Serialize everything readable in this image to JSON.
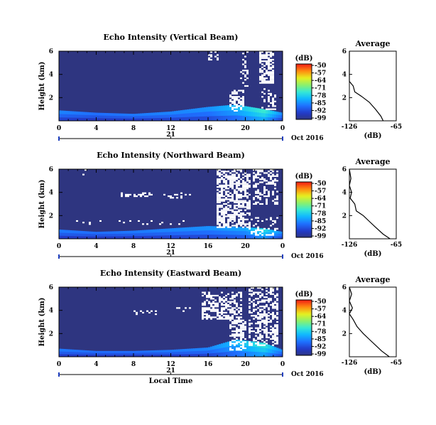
{
  "chart_data": [
    {
      "type": "heatmap",
      "title": "Echo Intensity (Vertical Beam)",
      "ylabel": "Height (km)",
      "yticks": [
        "6",
        "4",
        "2"
      ],
      "xticks": [
        "0",
        "4",
        "8",
        "12",
        "16",
        "20",
        "0"
      ],
      "date_tick": "21",
      "date_label": "Oct 2016",
      "xlim": [
        0,
        24
      ],
      "ylim": [
        0,
        6
      ],
      "colorbar": {
        "label": "(dB)",
        "ticks": [
          "-50",
          "-57",
          "-64",
          "-71",
          "-78",
          "-85",
          "-92",
          "-99"
        ],
        "range": [
          -99,
          -50
        ]
      },
      "background_db": -99,
      "speckle_seed": 11,
      "speckle": [
        {
          "x": [
            16.2,
            17.0
          ],
          "y": [
            5.2,
            5.9
          ],
          "p": 0.35
        },
        {
          "x": [
            18.5,
            19.8
          ],
          "y": [
            0.9,
            2.6
          ],
          "p": 0.55
        },
        {
          "x": [
            19.5,
            20.3
          ],
          "y": [
            3.0,
            6.0
          ],
          "p": 0.25
        },
        {
          "x": [
            21.5,
            23.0
          ],
          "y": [
            3.3,
            5.9
          ],
          "p": 0.75
        },
        {
          "x": [
            21.8,
            23.2
          ],
          "y": [
            1.0,
            2.8
          ],
          "p": 0.35
        }
      ],
      "low_layer": [
        {
          "x": 0,
          "top": 0.9,
          "db": -89
        },
        {
          "x": 4,
          "top": 0.7,
          "db": -91
        },
        {
          "x": 8,
          "top": 0.6,
          "db": -90
        },
        {
          "x": 12,
          "top": 0.8,
          "db": -89
        },
        {
          "x": 16,
          "top": 1.2,
          "db": -88
        },
        {
          "x": 19,
          "top": 1.4,
          "db": -84
        },
        {
          "x": 22,
          "top": 1.0,
          "db": -78
        },
        {
          "x": 24,
          "top": 0.7,
          "db": -89
        }
      ],
      "profile": {
        "title": "Average",
        "xlabel": "(dB)",
        "xticks": [
          "-126",
          "-65"
        ],
        "yticks": [
          "6",
          "4",
          "2"
        ],
        "xlim": [
          -126,
          -65
        ],
        "ylim": [
          0,
          6
        ],
        "points": [
          [
            -126,
            6.0
          ],
          [
            -126,
            3.4
          ],
          [
            -121,
            3.0
          ],
          [
            -119,
            2.5
          ],
          [
            -110,
            2.1
          ],
          [
            -100,
            1.6
          ],
          [
            -92,
            1.0
          ],
          [
            -85,
            0.4
          ],
          [
            -82,
            0.0
          ]
        ]
      }
    },
    {
      "type": "heatmap",
      "title": "Echo Intensity (Northward Beam)",
      "ylabel": "Height (km)",
      "yticks": [
        "6",
        "4",
        "2"
      ],
      "xticks": [
        "0",
        "4",
        "8",
        "12",
        "16",
        "20",
        "0"
      ],
      "date_tick": "21",
      "date_label": "Oct 2016",
      "xlim": [
        0,
        24
      ],
      "ylim": [
        0,
        6
      ],
      "colorbar": {
        "label": "(dB)",
        "ticks": [
          "-50",
          "-57",
          "-64",
          "-71",
          "-78",
          "-85",
          "-92",
          "-99"
        ],
        "range": [
          -99,
          -50
        ]
      },
      "background_db": -99,
      "speckle_seed": 23,
      "speckle": [
        {
          "x": [
            2.0,
            3.0
          ],
          "y": [
            5.6,
            6.0
          ],
          "p": 0.15
        },
        {
          "x": [
            6.5,
            10.0
          ],
          "y": [
            3.6,
            3.9
          ],
          "p": 0.4
        },
        {
          "x": [
            11.0,
            14.0
          ],
          "y": [
            3.5,
            3.9
          ],
          "p": 0.3
        },
        {
          "x": [
            1.0,
            16.0
          ],
          "y": [
            1.3,
            1.5
          ],
          "p": 0.06
        },
        {
          "x": [
            17.0,
            20.5
          ],
          "y": [
            1.0,
            6.0
          ],
          "p": 0.65
        },
        {
          "x": [
            21.0,
            23.5
          ],
          "y": [
            3.0,
            6.0
          ],
          "p": 0.45
        },
        {
          "x": [
            20.5,
            23.5
          ],
          "y": [
            0.3,
            1.8
          ],
          "p": 0.25
        }
      ],
      "low_layer": [
        {
          "x": 0,
          "top": 0.8,
          "db": -90
        },
        {
          "x": 4,
          "top": 0.6,
          "db": -91
        },
        {
          "x": 8,
          "top": 0.7,
          "db": -90
        },
        {
          "x": 12,
          "top": 0.9,
          "db": -89
        },
        {
          "x": 16,
          "top": 1.1,
          "db": -88
        },
        {
          "x": 20,
          "top": 1.0,
          "db": -86
        },
        {
          "x": 22,
          "top": 0.9,
          "db": -80
        },
        {
          "x": 24,
          "top": 0.6,
          "db": -89
        }
      ],
      "profile": {
        "title": "Average",
        "xlabel": "(dB)",
        "xticks": [
          "-126",
          "-65"
        ],
        "yticks": [
          "6",
          "4",
          "2"
        ],
        "xlim": [
          -126,
          -65
        ],
        "ylim": [
          0,
          6
        ],
        "points": [
          [
            -126,
            6.0
          ],
          [
            -124,
            5.2
          ],
          [
            -126,
            4.6
          ],
          [
            -123,
            4.0
          ],
          [
            -125,
            3.5
          ],
          [
            -119,
            3.0
          ],
          [
            -117,
            2.4
          ],
          [
            -108,
            2.0
          ],
          [
            -100,
            1.5
          ],
          [
            -92,
            1.0
          ],
          [
            -82,
            0.4
          ],
          [
            -73,
            0.0
          ]
        ]
      }
    },
    {
      "type": "heatmap",
      "title": "Echo Intensity (Eastward Beam)",
      "ylabel": "Height (km)",
      "yticks": [
        "6",
        "4",
        "2"
      ],
      "xticks": [
        "0",
        "4",
        "8",
        "12",
        "16",
        "20",
        "0"
      ],
      "date_tick": "21",
      "date_label": "Oct 2016",
      "xlabel": "Local Time",
      "xlim": [
        0,
        24
      ],
      "ylim": [
        0,
        6
      ],
      "colorbar": {
        "label": "(dB)",
        "ticks": [
          "-50",
          "-57",
          "-64",
          "-71",
          "-78",
          "-85",
          "-92",
          "-99"
        ],
        "range": [
          -99,
          -50
        ]
      },
      "background_db": -99,
      "speckle_seed": 37,
      "speckle": [
        {
          "x": [
            8.0,
            10.5
          ],
          "y": [
            3.7,
            4.0
          ],
          "p": 0.25
        },
        {
          "x": [
            12.5,
            14.0
          ],
          "y": [
            3.9,
            4.2
          ],
          "p": 0.3
        },
        {
          "x": [
            15.5,
            19.5
          ],
          "y": [
            3.2,
            5.5
          ],
          "p": 0.55
        },
        {
          "x": [
            18.5,
            20.0
          ],
          "y": [
            0.6,
            3.2
          ],
          "p": 0.6
        },
        {
          "x": [
            20.5,
            23.5
          ],
          "y": [
            1.0,
            6.0
          ],
          "p": 0.5
        }
      ],
      "low_layer": [
        {
          "x": 0,
          "top": 0.7,
          "db": -90
        },
        {
          "x": 4,
          "top": 0.5,
          "db": -91
        },
        {
          "x": 8,
          "top": 0.5,
          "db": -91
        },
        {
          "x": 12,
          "top": 0.6,
          "db": -90
        },
        {
          "x": 16,
          "top": 0.8,
          "db": -89
        },
        {
          "x": 19,
          "top": 1.5,
          "db": -84
        },
        {
          "x": 22,
          "top": 1.2,
          "db": -79
        },
        {
          "x": 24,
          "top": 0.6,
          "db": -89
        }
      ],
      "profile": {
        "title": "Average",
        "xlabel": "(dB)",
        "xticks": [
          "-126",
          "-65"
        ],
        "yticks": [
          "6",
          "4",
          "2"
        ],
        "xlim": [
          -126,
          -65
        ],
        "ylim": [
          0,
          6
        ],
        "points": [
          [
            -126,
            6.0
          ],
          [
            -123,
            5.4
          ],
          [
            -126,
            4.8
          ],
          [
            -122,
            4.2
          ],
          [
            -126,
            3.7
          ],
          [
            -121,
            3.2
          ],
          [
            -116,
            2.6
          ],
          [
            -108,
            2.0
          ],
          [
            -100,
            1.5
          ],
          [
            -92,
            1.0
          ],
          [
            -84,
            0.5
          ],
          [
            -74,
            0.0
          ]
        ]
      }
    }
  ]
}
